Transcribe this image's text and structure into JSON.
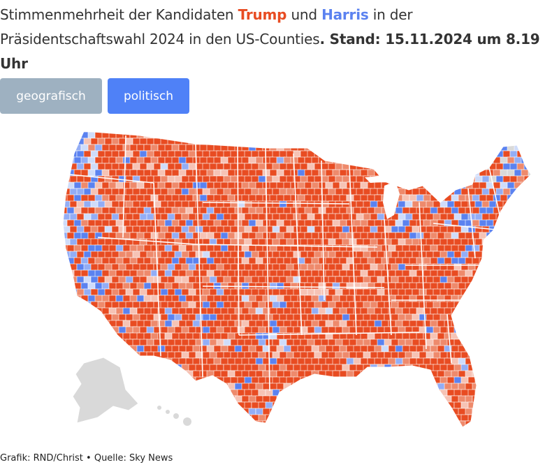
{
  "title": {
    "prefix": "Stimmenmehrheit der Kandidaten ",
    "trump": "Trump",
    "middle": " und ",
    "harris": "Harris",
    "suffix": " in der Präsidentschaftswahl 2024 in den US-Counties",
    "stand": ". Stand: 15.11.2024 um 8.19 Uhr"
  },
  "toggles": {
    "geo_label": "geografisch",
    "pol_label": "politisch",
    "selected": "politisch"
  },
  "map": {
    "name": "US-Counties Präsidentschaftswahl 2024",
    "colors": {
      "trump_strong": "#e84c22",
      "trump_mid": "#ee8a6c",
      "trump_weak": "#f6c3b5",
      "harris_strong": "#5b82f0",
      "harris_mid": "#93adf5",
      "harris_weak": "#cfdcfa",
      "no_data": "#d9d9d9"
    }
  },
  "footer": {
    "credit": "Grafik: RND/Christ • Quelle: Sky News"
  }
}
